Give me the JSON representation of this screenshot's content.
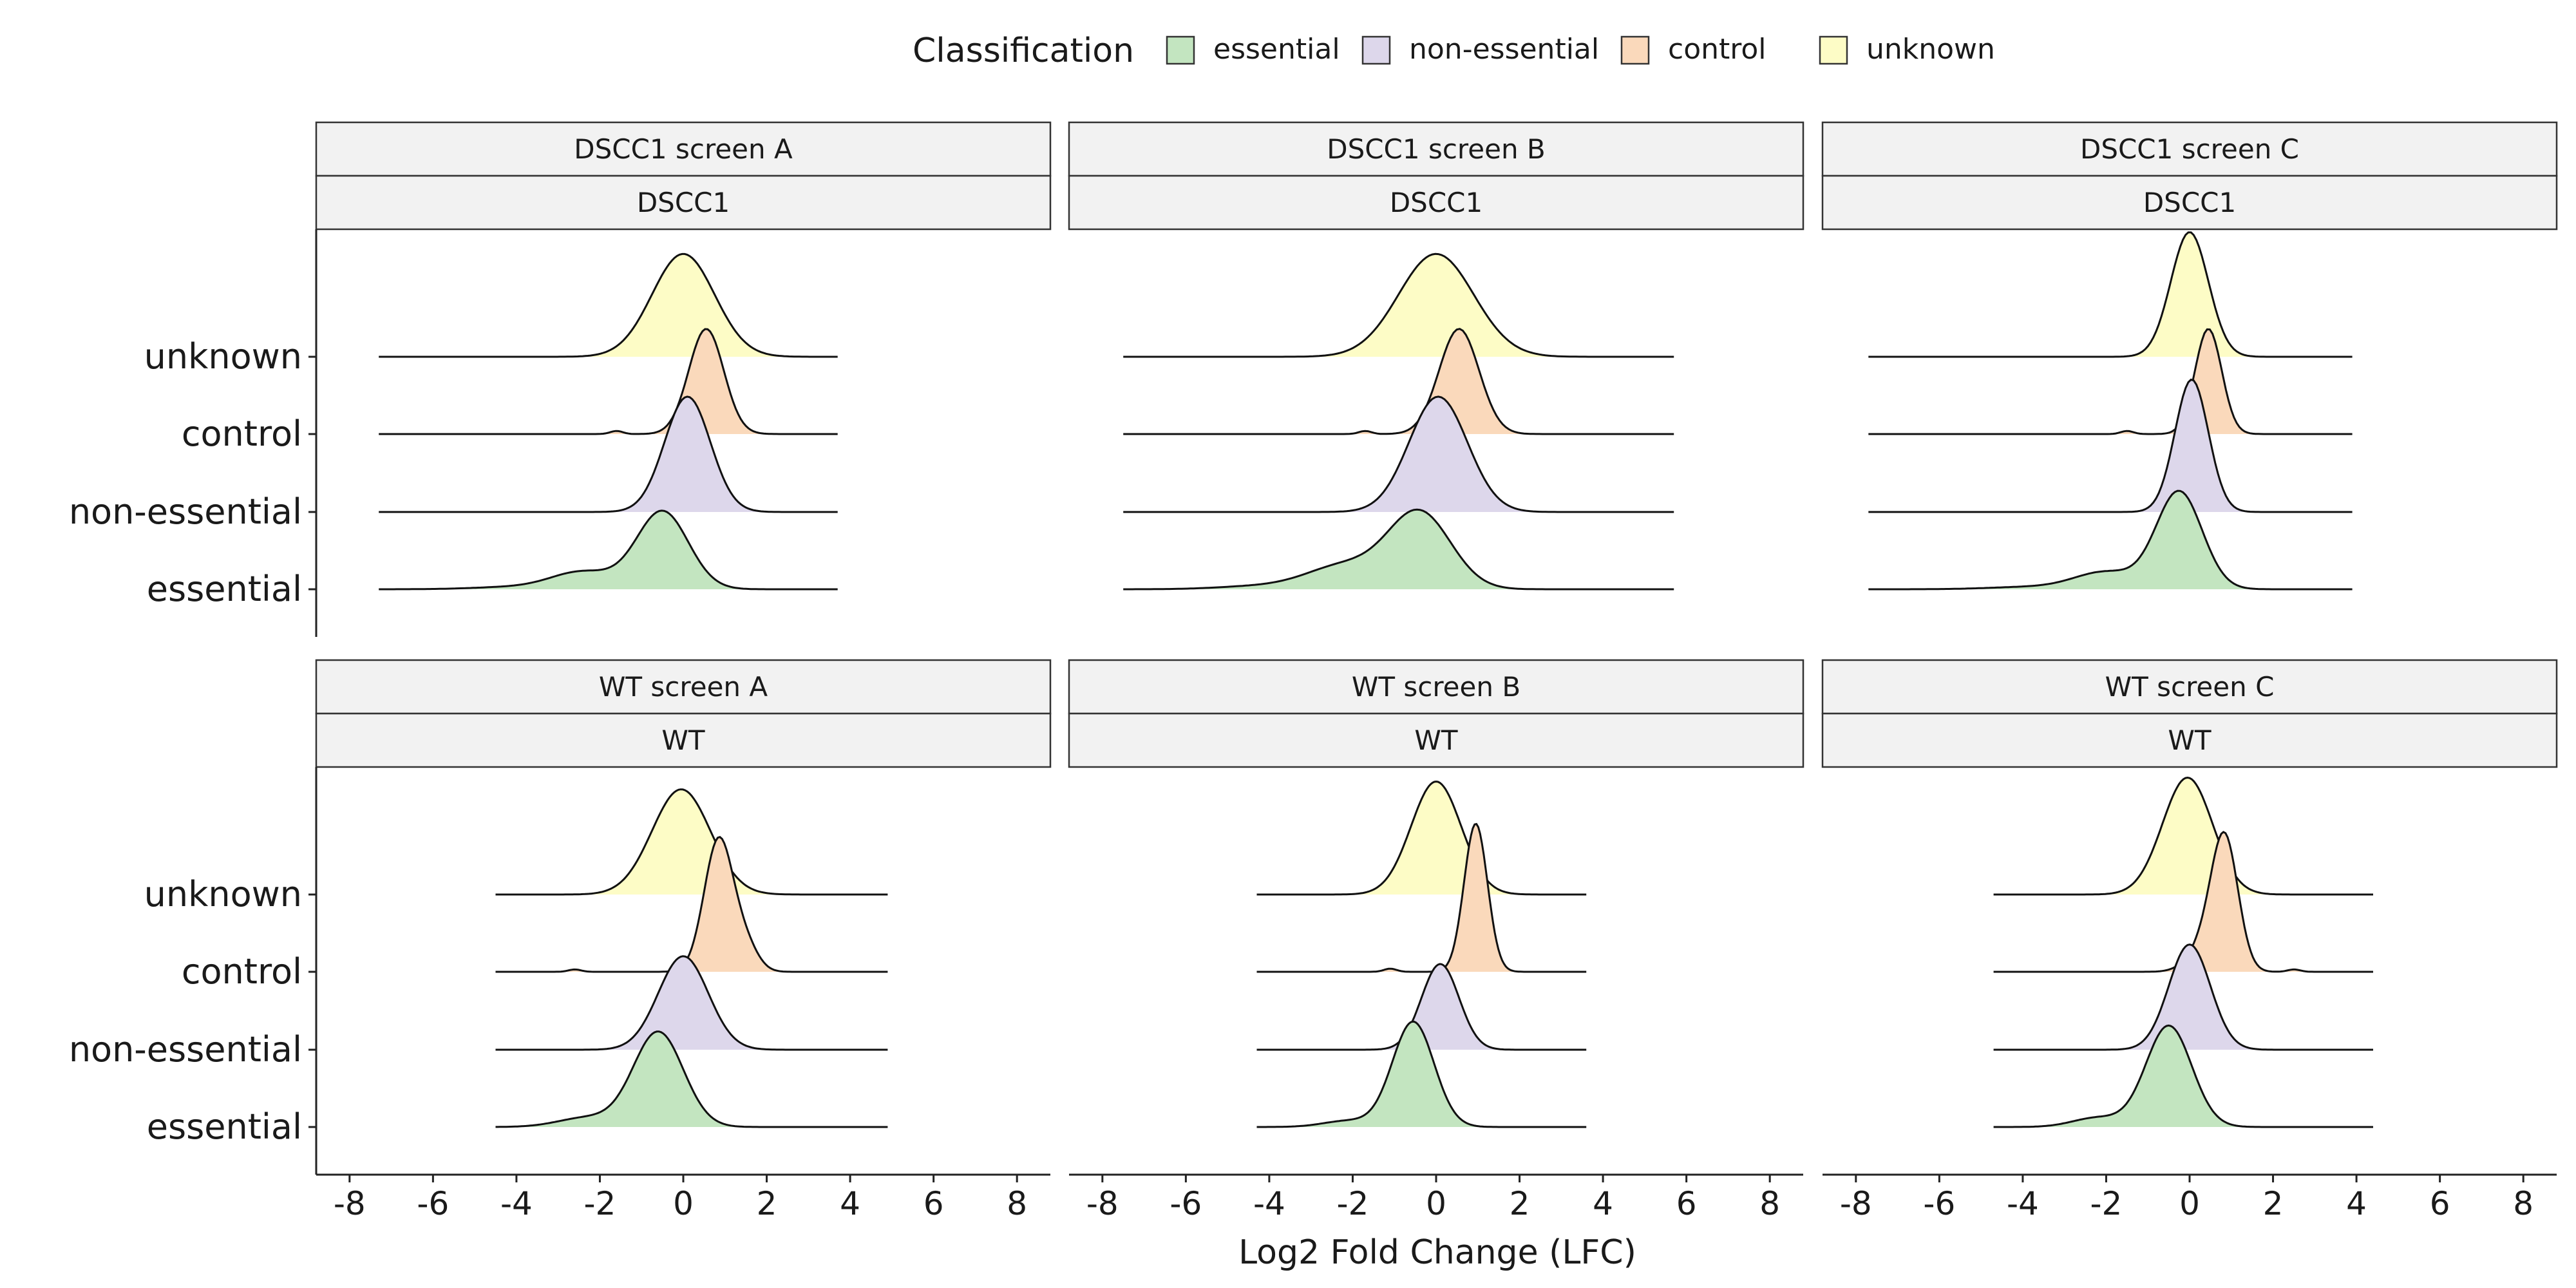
{
  "chart_data": {
    "type": "ridgeline",
    "x_axis_title": "Log2 Fold Change (LFC)",
    "x_ticks": [
      -8,
      -6,
      -4,
      -2,
      0,
      2,
      4,
      6,
      8
    ],
    "x_tick_labels": [
      "-8",
      "-6",
      "-4",
      "-2",
      "0",
      "2",
      "4",
      "6",
      "8"
    ],
    "xlim": [
      -8.8,
      8.8
    ],
    "y_categories": [
      "unknown",
      "control",
      "non-essential",
      "essential"
    ],
    "grid": false,
    "legend": {
      "title": "Classification",
      "position": "top",
      "items": [
        {
          "label": "essential",
          "color": "#c3e5c0"
        },
        {
          "label": "non-essential",
          "color": "#ddd7eb"
        },
        {
          "label": "control",
          "color": "#fad9bb"
        },
        {
          "label": "unknown",
          "color": "#fdfcc6"
        }
      ]
    },
    "panels": [
      {
        "strip_top": "DSCC1 screen A",
        "strip_bottom": "DSCC1",
        "row": 0,
        "col": 0,
        "range": [
          -7.3,
          3.7
        ],
        "ridges": {
          "unknown": {
            "peaks": [
              {
                "mu": 0.0,
                "sd": 0.75,
                "h": 1.32
              }
            ]
          },
          "control": {
            "peaks": [
              {
                "mu": 0.55,
                "sd": 0.42,
                "h": 1.35
              },
              {
                "mu": -1.6,
                "sd": 0.15,
                "h": 0.04
              }
            ]
          },
          "non-essential": {
            "peaks": [
              {
                "mu": 0.1,
                "sd": 0.55,
                "h": 1.48
              }
            ]
          },
          "essential": {
            "peaks": [
              {
                "mu": -0.5,
                "sd": 0.62,
                "h": 1.0
              },
              {
                "mu": -2.4,
                "sd": 0.75,
                "h": 0.22
              },
              {
                "mu": -4.0,
                "sd": 1.0,
                "h": 0.03
              }
            ]
          }
        }
      },
      {
        "strip_top": "DSCC1 screen B",
        "strip_bottom": "DSCC1",
        "row": 0,
        "col": 1,
        "range": [
          -7.5,
          5.7
        ],
        "ridges": {
          "unknown": {
            "peaks": [
              {
                "mu": 0.0,
                "sd": 0.9,
                "h": 1.32
              }
            ]
          },
          "control": {
            "peaks": [
              {
                "mu": 0.55,
                "sd": 0.48,
                "h": 1.35
              },
              {
                "mu": -1.7,
                "sd": 0.15,
                "h": 0.04
              }
            ]
          },
          "non-essential": {
            "peaks": [
              {
                "mu": 0.05,
                "sd": 0.7,
                "h": 1.48
              }
            ]
          },
          "essential": {
            "peaks": [
              {
                "mu": -0.4,
                "sd": 0.75,
                "h": 0.98
              },
              {
                "mu": -2.2,
                "sd": 0.9,
                "h": 0.3
              },
              {
                "mu": -4.2,
                "sd": 1.0,
                "h": 0.04
              }
            ]
          }
        }
      },
      {
        "strip_top": "DSCC1 screen C",
        "strip_bottom": "DSCC1",
        "row": 0,
        "col": 2,
        "range": [
          -7.7,
          3.9
        ],
        "ridges": {
          "unknown": {
            "peaks": [
              {
                "mu": 0.0,
                "sd": 0.45,
                "h": 1.6
              }
            ]
          },
          "control": {
            "peaks": [
              {
                "mu": 0.45,
                "sd": 0.32,
                "h": 1.35
              },
              {
                "mu": -1.5,
                "sd": 0.15,
                "h": 0.04
              }
            ]
          },
          "non-essential": {
            "peaks": [
              {
                "mu": 0.05,
                "sd": 0.4,
                "h": 1.7
              }
            ]
          },
          "essential": {
            "peaks": [
              {
                "mu": -0.25,
                "sd": 0.55,
                "h": 1.25
              },
              {
                "mu": -2.0,
                "sd": 0.75,
                "h": 0.22
              },
              {
                "mu": -3.8,
                "sd": 1.0,
                "h": 0.03
              }
            ]
          }
        }
      },
      {
        "strip_top": "WT screen A",
        "strip_bottom": "WT",
        "row": 1,
        "col": 0,
        "range": [
          -4.5,
          4.9
        ],
        "ridges": {
          "unknown": {
            "peaks": [
              {
                "mu": -0.05,
                "sd": 0.7,
                "h": 1.35
              }
            ]
          },
          "control": {
            "peaks": [
              {
                "mu": 0.85,
                "sd": 0.35,
                "h": 1.7
              },
              {
                "mu": 1.5,
                "sd": 0.3,
                "h": 0.3
              },
              {
                "mu": -2.6,
                "sd": 0.15,
                "h": 0.03
              }
            ]
          },
          "non-essential": {
            "peaks": [
              {
                "mu": 0.0,
                "sd": 0.6,
                "h": 1.2
              }
            ]
          },
          "essential": {
            "peaks": [
              {
                "mu": -0.6,
                "sd": 0.6,
                "h": 1.22
              },
              {
                "mu": -2.3,
                "sd": 0.7,
                "h": 0.12
              }
            ]
          }
        }
      },
      {
        "strip_top": "WT screen B",
        "strip_bottom": "WT",
        "row": 1,
        "col": 1,
        "range": [
          -4.3,
          3.6
        ],
        "ridges": {
          "unknown": {
            "peaks": [
              {
                "mu": 0.0,
                "sd": 0.6,
                "h": 1.45
              }
            ]
          },
          "control": {
            "peaks": [
              {
                "mu": 0.95,
                "sd": 0.28,
                "h": 1.9
              },
              {
                "mu": -1.1,
                "sd": 0.15,
                "h": 0.04
              }
            ]
          },
          "non-essential": {
            "peaks": [
              {
                "mu": 0.1,
                "sd": 0.45,
                "h": 1.1
              }
            ]
          },
          "essential": {
            "peaks": [
              {
                "mu": -0.55,
                "sd": 0.5,
                "h": 1.35
              },
              {
                "mu": -2.1,
                "sd": 0.6,
                "h": 0.08
              }
            ]
          }
        }
      },
      {
        "strip_top": "WT screen C",
        "strip_bottom": "WT",
        "row": 1,
        "col": 2,
        "range": [
          -4.7,
          4.4
        ],
        "ridges": {
          "unknown": {
            "peaks": [
              {
                "mu": -0.05,
                "sd": 0.6,
                "h": 1.5
              }
            ]
          },
          "control": {
            "peaks": [
              {
                "mu": 0.85,
                "sd": 0.32,
                "h": 1.6
              },
              {
                "mu": 0.4,
                "sd": 0.4,
                "h": 0.35
              },
              {
                "mu": 2.5,
                "sd": 0.15,
                "h": 0.03
              }
            ]
          },
          "non-essential": {
            "peaks": [
              {
                "mu": 0.0,
                "sd": 0.5,
                "h": 1.35
              }
            ]
          },
          "essential": {
            "peaks": [
              {
                "mu": -0.5,
                "sd": 0.55,
                "h": 1.3
              },
              {
                "mu": -2.2,
                "sd": 0.6,
                "h": 0.12
              }
            ]
          }
        }
      }
    ]
  }
}
